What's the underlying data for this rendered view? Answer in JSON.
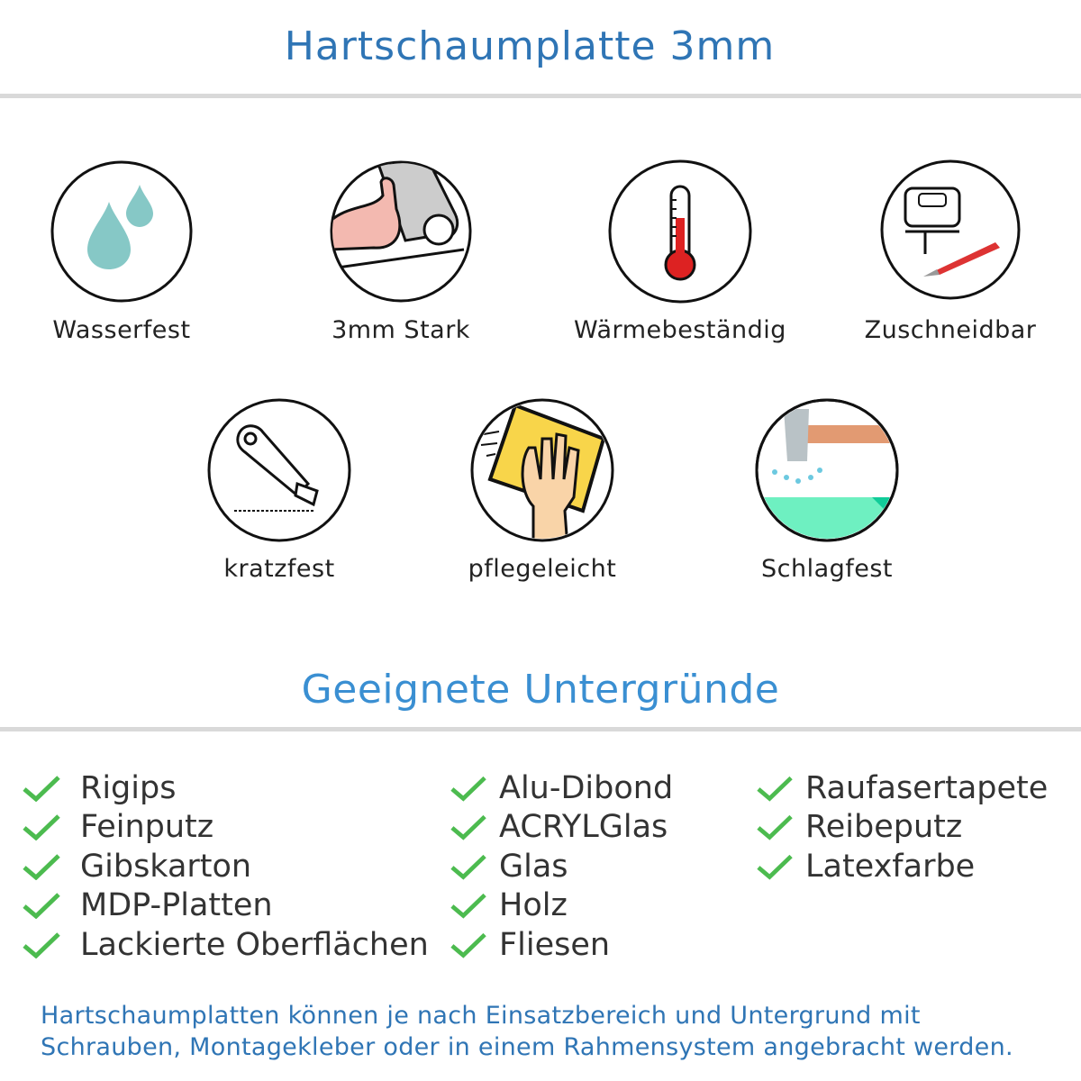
{
  "header": {
    "title": "Hartschaumplatte 3mm"
  },
  "features": [
    {
      "label": "Wasserfest",
      "icon": "water-drops-icon"
    },
    {
      "label": "3mm Stark",
      "icon": "strong-arm-icon"
    },
    {
      "label": "Wärmebeständig",
      "icon": "thermometer-icon"
    },
    {
      "label": "Zuschneidbar",
      "icon": "jigsaw-cutter-icon"
    },
    {
      "label": "kratzfest",
      "icon": "cutter-knife-icon"
    },
    {
      "label": "pflegeleicht",
      "icon": "hand-sponge-icon"
    },
    {
      "label": "Schlagfest",
      "icon": "hammer-impact-icon"
    }
  ],
  "surfaces": {
    "title": "Geeignete Untergründe",
    "columns": [
      [
        "Rigips",
        "Feinputz",
        "Gibskarton",
        "MDP-Platten",
        "Lackierte Oberflächen"
      ],
      [
        "Alu-Dibond",
        "ACRYLGlas",
        "Glas",
        "Holz",
        "Fliesen"
      ],
      [
        "Raufasertapete",
        "Reibeputz",
        "Latexfarbe"
      ]
    ],
    "check_color": "#4cbb4f"
  },
  "footer": {
    "line1": "Hartschaumplatten können je nach Einsatzbereich und Untergrund mit",
    "line2": "Schrauben, Montagekleber oder in einem Rahmensystem angebracht werden."
  },
  "colors": {
    "title": "#2f75b5",
    "subtitle": "#3a8fd2",
    "rule": "#d9d9d9"
  }
}
